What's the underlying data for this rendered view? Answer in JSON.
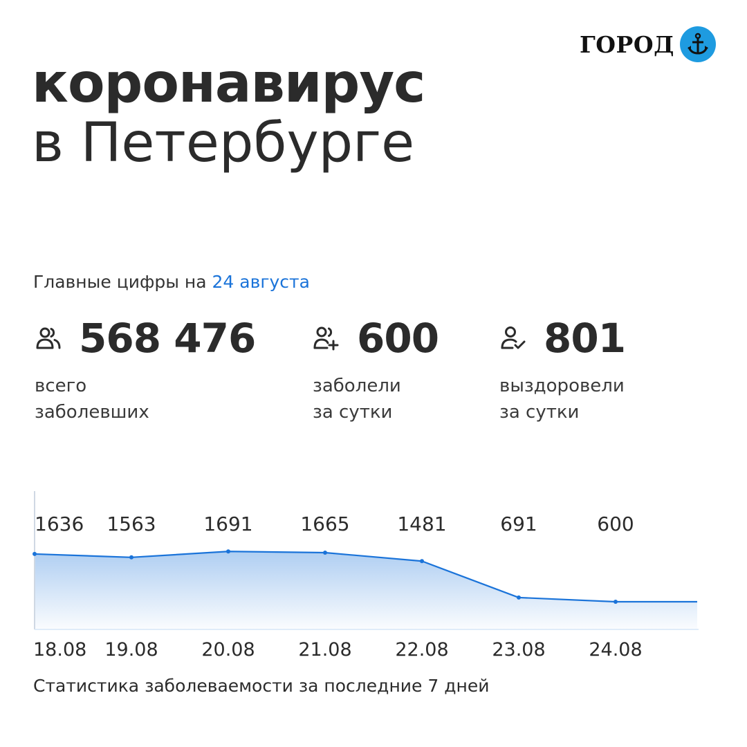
{
  "brand": {
    "name": "ГОРОД"
  },
  "title": {
    "line1": "коронавирус",
    "line2": "в Петербурге"
  },
  "subhead": {
    "prefix": "Главные цифры на",
    "date": "24 августа"
  },
  "stats": [
    {
      "icon": "people-icon",
      "value": "568 476",
      "label_line1": "всего",
      "label_line2": "заболевших"
    },
    {
      "icon": "person-add-icon",
      "value": "600",
      "label_line1": "заболели",
      "label_line2": "за сутки"
    },
    {
      "icon": "person-check-icon",
      "value": "801",
      "label_line1": "выздоровели",
      "label_line2": "за сутки"
    }
  ],
  "colors": {
    "accent": "#1a73d9",
    "logo_circle": "#1e9be0",
    "text": "#2b2b2b"
  },
  "chart_data": {
    "type": "area",
    "x": [
      "18.08",
      "19.08",
      "20.08",
      "21.08",
      "22.08",
      "23.08",
      "24.08"
    ],
    "series": [
      {
        "values": [
          1636,
          1563,
          1691,
          1665,
          1481,
          691,
          600
        ]
      }
    ],
    "data_labels": [
      "1636",
      "1563",
      "1691",
      "1665",
      "1481",
      "691",
      "600"
    ],
    "title": "",
    "xlabel": "",
    "ylabel": "",
    "ylim": [
      0,
      3000
    ],
    "grid": false,
    "legend": "none"
  },
  "caption": "Статистика заболеваемости за последние 7 дней"
}
